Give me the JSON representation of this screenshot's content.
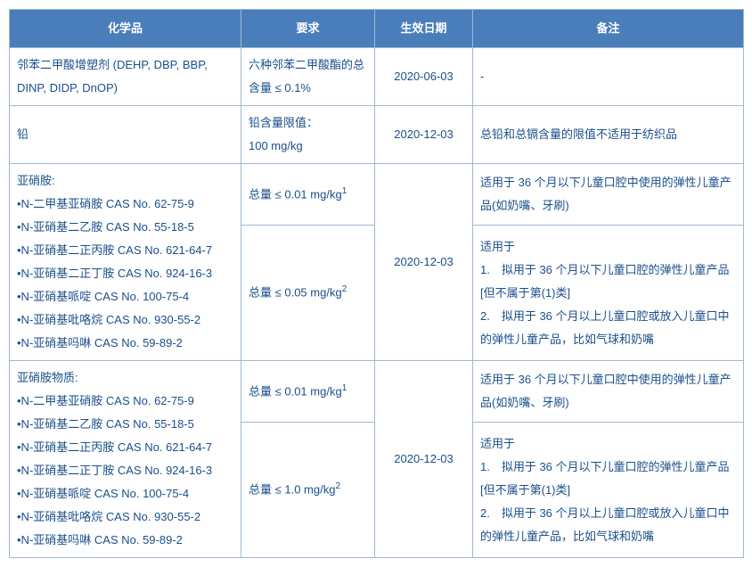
{
  "header": {
    "bg": "#4a7ebb",
    "text": "#ffffff",
    "cols": [
      "化学品",
      "要求",
      "生效日期",
      "备注"
    ]
  },
  "rows": {
    "r1": {
      "chem": "邻苯二甲酸增塑剂 (DEHP, DBP, BBP, DINP, DIDP, DnOP)",
      "req": "六种邻苯二甲酸酯的总含量 ≤ 0.1%",
      "date": "2020-06-03",
      "note": "-"
    },
    "r2": {
      "chem": "铅",
      "req": "铅含量限值：\n100 mg/kg",
      "date": "2020-12-03",
      "note": "总铅和总镉含量的限值不适用于纺织品"
    },
    "r3": {
      "chem_title": "亚硝胺:",
      "chem_items": [
        "•N-二甲基亚硝胺  CAS No. 62-75-9",
        "•N-亚硝基二乙胺  CAS No. 55-18-5",
        "•N-亚硝基二正丙胺  CAS No. 621-64-7",
        "•N-亚硝基二正丁胺  CAS No. 924-16-3",
        "•N-亚硝基哌啶  CAS No. 100-75-4",
        "•N-亚硝基吡咯烷  CAS No. 930-55-2",
        "•N-亚硝基吗啉  CAS No. 59-89-2"
      ],
      "req_a": "总量 ≤ 0.01 mg/kg",
      "req_a_sup": "1",
      "req_b": "总量 ≤ 0.05 mg/kg",
      "req_b_sup": "2",
      "date": "2020-12-03",
      "note_a": "适用于 36 个月以下儿童口腔中使用的弹性儿童产品(如奶嘴、牙刷)",
      "note_b": "适用于\n1.　拟用于 36 个月以下儿童口腔的弹性儿童产品[但不属于第(1)类]\n2.　拟用于 36 个月以上儿童口腔或放入儿童口中的弹性儿童产品，比如气球和奶嘴"
    },
    "r4": {
      "chem_title": "亚硝胺物质:",
      "chem_items": [
        "•N-二甲基亚硝胺  CAS No. 62-75-9",
        "•N-亚硝基二乙胺  CAS No. 55-18-5",
        "•N-亚硝基二正丙胺  CAS No. 621-64-7",
        "•N-亚硝基二正丁胺  CAS No. 924-16-3",
        "•N-亚硝基哌啶  CAS No. 100-75-4",
        "•N-亚硝基吡咯烷  CAS No. 930-55-2",
        "•N-亚硝基吗啉  CAS No. 59-89-2"
      ],
      "req_a": "总量 ≤ 0.01 mg/kg",
      "req_a_sup": "1",
      "req_b": "总量 ≤ 1.0 mg/kg",
      "req_b_sup": "2",
      "date": "2020-12-03",
      "note_a": "适用于 36 个月以下儿童口腔中使用的弹性儿童产品(如奶嘴、牙刷)",
      "note_b": "适用于\n1.　拟用于 36 个月以下儿童口腔的弹性儿童产品[但不属于第(1)类]\n2.　拟用于 36 个月以上儿童口腔或放入儿童口中的弹性儿童产品，比如气球和奶嘴"
    }
  }
}
